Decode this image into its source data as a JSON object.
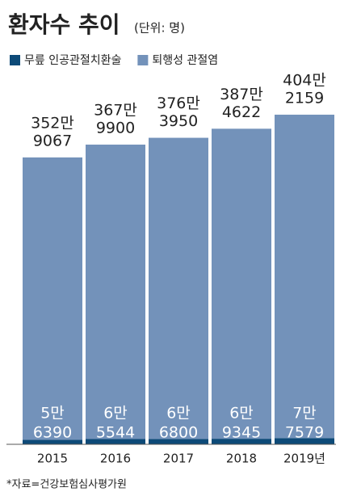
{
  "chart_data": {
    "type": "stacked_bar",
    "title": "환자수 추이",
    "subtitle": "(단위: 명)",
    "source": "*자료=건강보험심사평가원",
    "categories": [
      "2015",
      "2016",
      "2017",
      "2018",
      "2019년"
    ],
    "series": [
      {
        "name": "무릎 인공관절치환술",
        "color": "#0d4a78",
        "values": [
          56390,
          65544,
          66800,
          69345,
          77579
        ],
        "value_labels": [
          [
            "5만",
            "6390"
          ],
          [
            "6만",
            "5544"
          ],
          [
            "6만",
            "6800"
          ],
          [
            "6만",
            "9345"
          ],
          [
            "7만",
            "7579"
          ]
        ]
      },
      {
        "name": "퇴행성 관절염",
        "color": "#7392ba",
        "values": [
          3529067,
          3679900,
          3763950,
          3874622,
          4042159
        ],
        "value_labels": [
          [
            "352만",
            "9067"
          ],
          [
            "367만",
            "9900"
          ],
          [
            "376만",
            "3950"
          ],
          [
            "387만",
            "4622"
          ],
          [
            "404만",
            "2159"
          ]
        ]
      }
    ],
    "ylim": [
      0,
      4200000
    ]
  }
}
